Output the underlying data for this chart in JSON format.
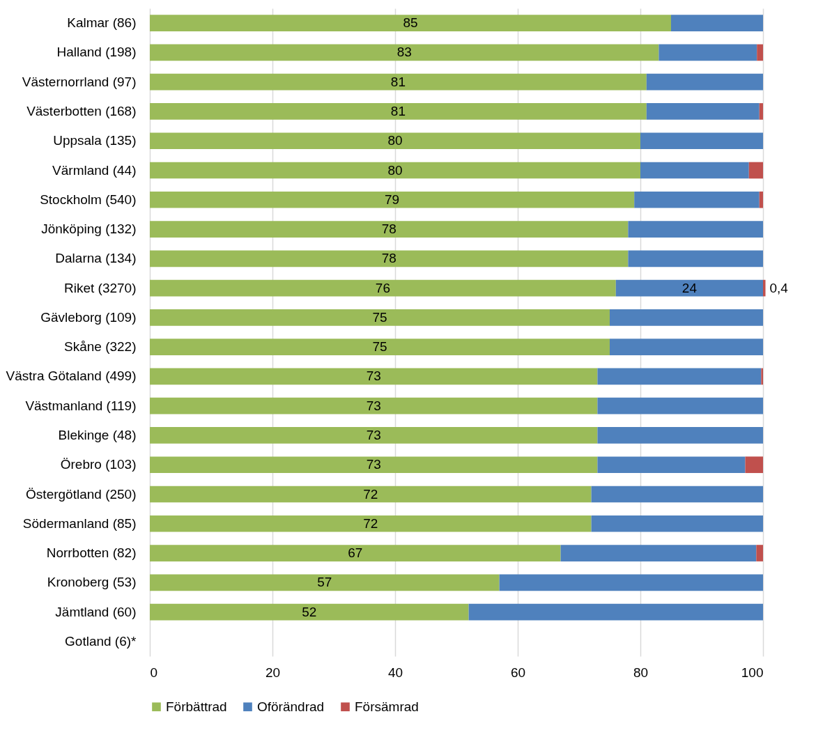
{
  "chart_data": {
    "type": "bar",
    "orientation": "horizontal",
    "stacked": true,
    "categories": [
      "Kalmar (86)",
      "Halland (198)",
      "Västernorrland (97)",
      "Västerbotten (168)",
      "Uppsala (135)",
      "Värmland (44)",
      "Stockholm (540)",
      "Jönköping (132)",
      "Dalarna (134)",
      "Riket (3270)",
      "Gävleborg (109)",
      "Skåne (322)",
      "Västra Götaland (499)",
      "Västmanland (119)",
      "Blekinge (48)",
      "Örebro (103)",
      "Östergötland (250)",
      "Södermanland (85)",
      "Norrbotten (82)",
      "Kronoberg (53)",
      "Jämtland (60)",
      "Gotland (6)*"
    ],
    "series": [
      {
        "name": "Förbättrad",
        "color": "#9bbb59",
        "values": [
          85,
          83,
          81,
          81,
          80,
          80,
          79,
          78,
          78,
          76,
          75,
          75,
          73,
          73,
          73,
          73,
          72,
          72,
          67,
          57,
          52,
          null
        ],
        "value_labels": [
          "85",
          "83",
          "81",
          "81",
          "80",
          "80",
          "79",
          "78",
          "78",
          "76",
          "75",
          "75",
          "73",
          "73",
          "73",
          "73",
          "72",
          "72",
          "67",
          "57",
          "52",
          null
        ]
      },
      {
        "name": "Oförändrad",
        "color": "#4f81bd",
        "values": [
          15,
          16,
          19,
          18.4,
          20,
          17.7,
          20.4,
          22,
          22,
          24,
          25,
          25,
          26.7,
          27,
          27,
          24.1,
          28,
          28,
          31.9,
          43,
          48,
          null
        ],
        "value_labels": [
          null,
          null,
          null,
          null,
          null,
          null,
          null,
          null,
          null,
          "24",
          null,
          null,
          null,
          null,
          null,
          null,
          null,
          null,
          null,
          null,
          null,
          null
        ]
      },
      {
        "name": "Försämrad",
        "color": "#c0504d",
        "values": [
          0,
          1,
          0,
          0.6,
          0,
          2.3,
          0.6,
          0,
          0,
          0.4,
          0,
          0,
          0.3,
          0,
          0,
          2.9,
          0,
          0,
          1.1,
          0,
          0,
          null
        ],
        "value_labels": [
          null,
          null,
          null,
          null,
          null,
          null,
          null,
          null,
          null,
          "0,4",
          null,
          null,
          null,
          null,
          null,
          null,
          null,
          null,
          null,
          null,
          null,
          null
        ]
      }
    ],
    "xlim": [
      0,
      100
    ],
    "xticks": [
      0,
      20,
      40,
      60,
      80,
      100
    ],
    "grid": "x",
    "legend": "bottom"
  }
}
